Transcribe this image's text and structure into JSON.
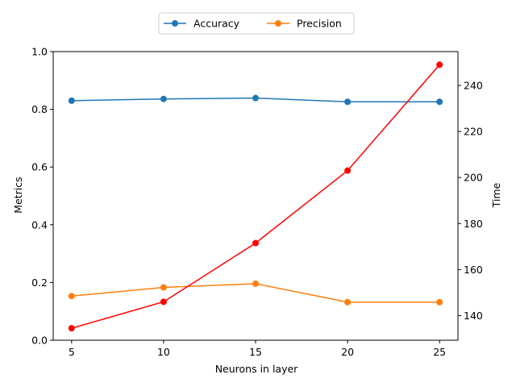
{
  "chart_data": {
    "type": "line",
    "x": [
      5,
      10,
      15,
      20,
      25
    ],
    "xticks": [
      5,
      10,
      15,
      20,
      25
    ],
    "xlabel": "Neurons in layer",
    "xlim": [
      4,
      26
    ],
    "left_axis": {
      "label": "Metrics",
      "ylim": [
        0,
        1
      ],
      "ticks": [
        "0.0",
        "0.2",
        "0.4",
        "0.6",
        "0.8",
        "1.0"
      ]
    },
    "right_axis": {
      "label": "Time",
      "label_color": "#ff0000",
      "ylim": [
        129.3,
        254.7
      ],
      "ticks": [
        140,
        160,
        180,
        200,
        220,
        240
      ]
    },
    "series": [
      {
        "name": "Accuracy",
        "axis": "left",
        "color": "#1f77b4",
        "values": [
          0.83,
          0.836,
          0.839,
          0.826,
          0.826
        ]
      },
      {
        "name": "Precision",
        "axis": "left",
        "color": "#ff7f0e",
        "values": [
          0.153,
          0.183,
          0.196,
          0.132,
          0.132
        ]
      },
      {
        "name": "",
        "axis": "right",
        "color": "#ff0000",
        "values": [
          134.5,
          146.0,
          171.5,
          203.0,
          249.0
        ]
      }
    ],
    "legend": {
      "placement": "top-center",
      "entries": [
        "Accuracy",
        "Precision"
      ]
    },
    "grid": false
  }
}
